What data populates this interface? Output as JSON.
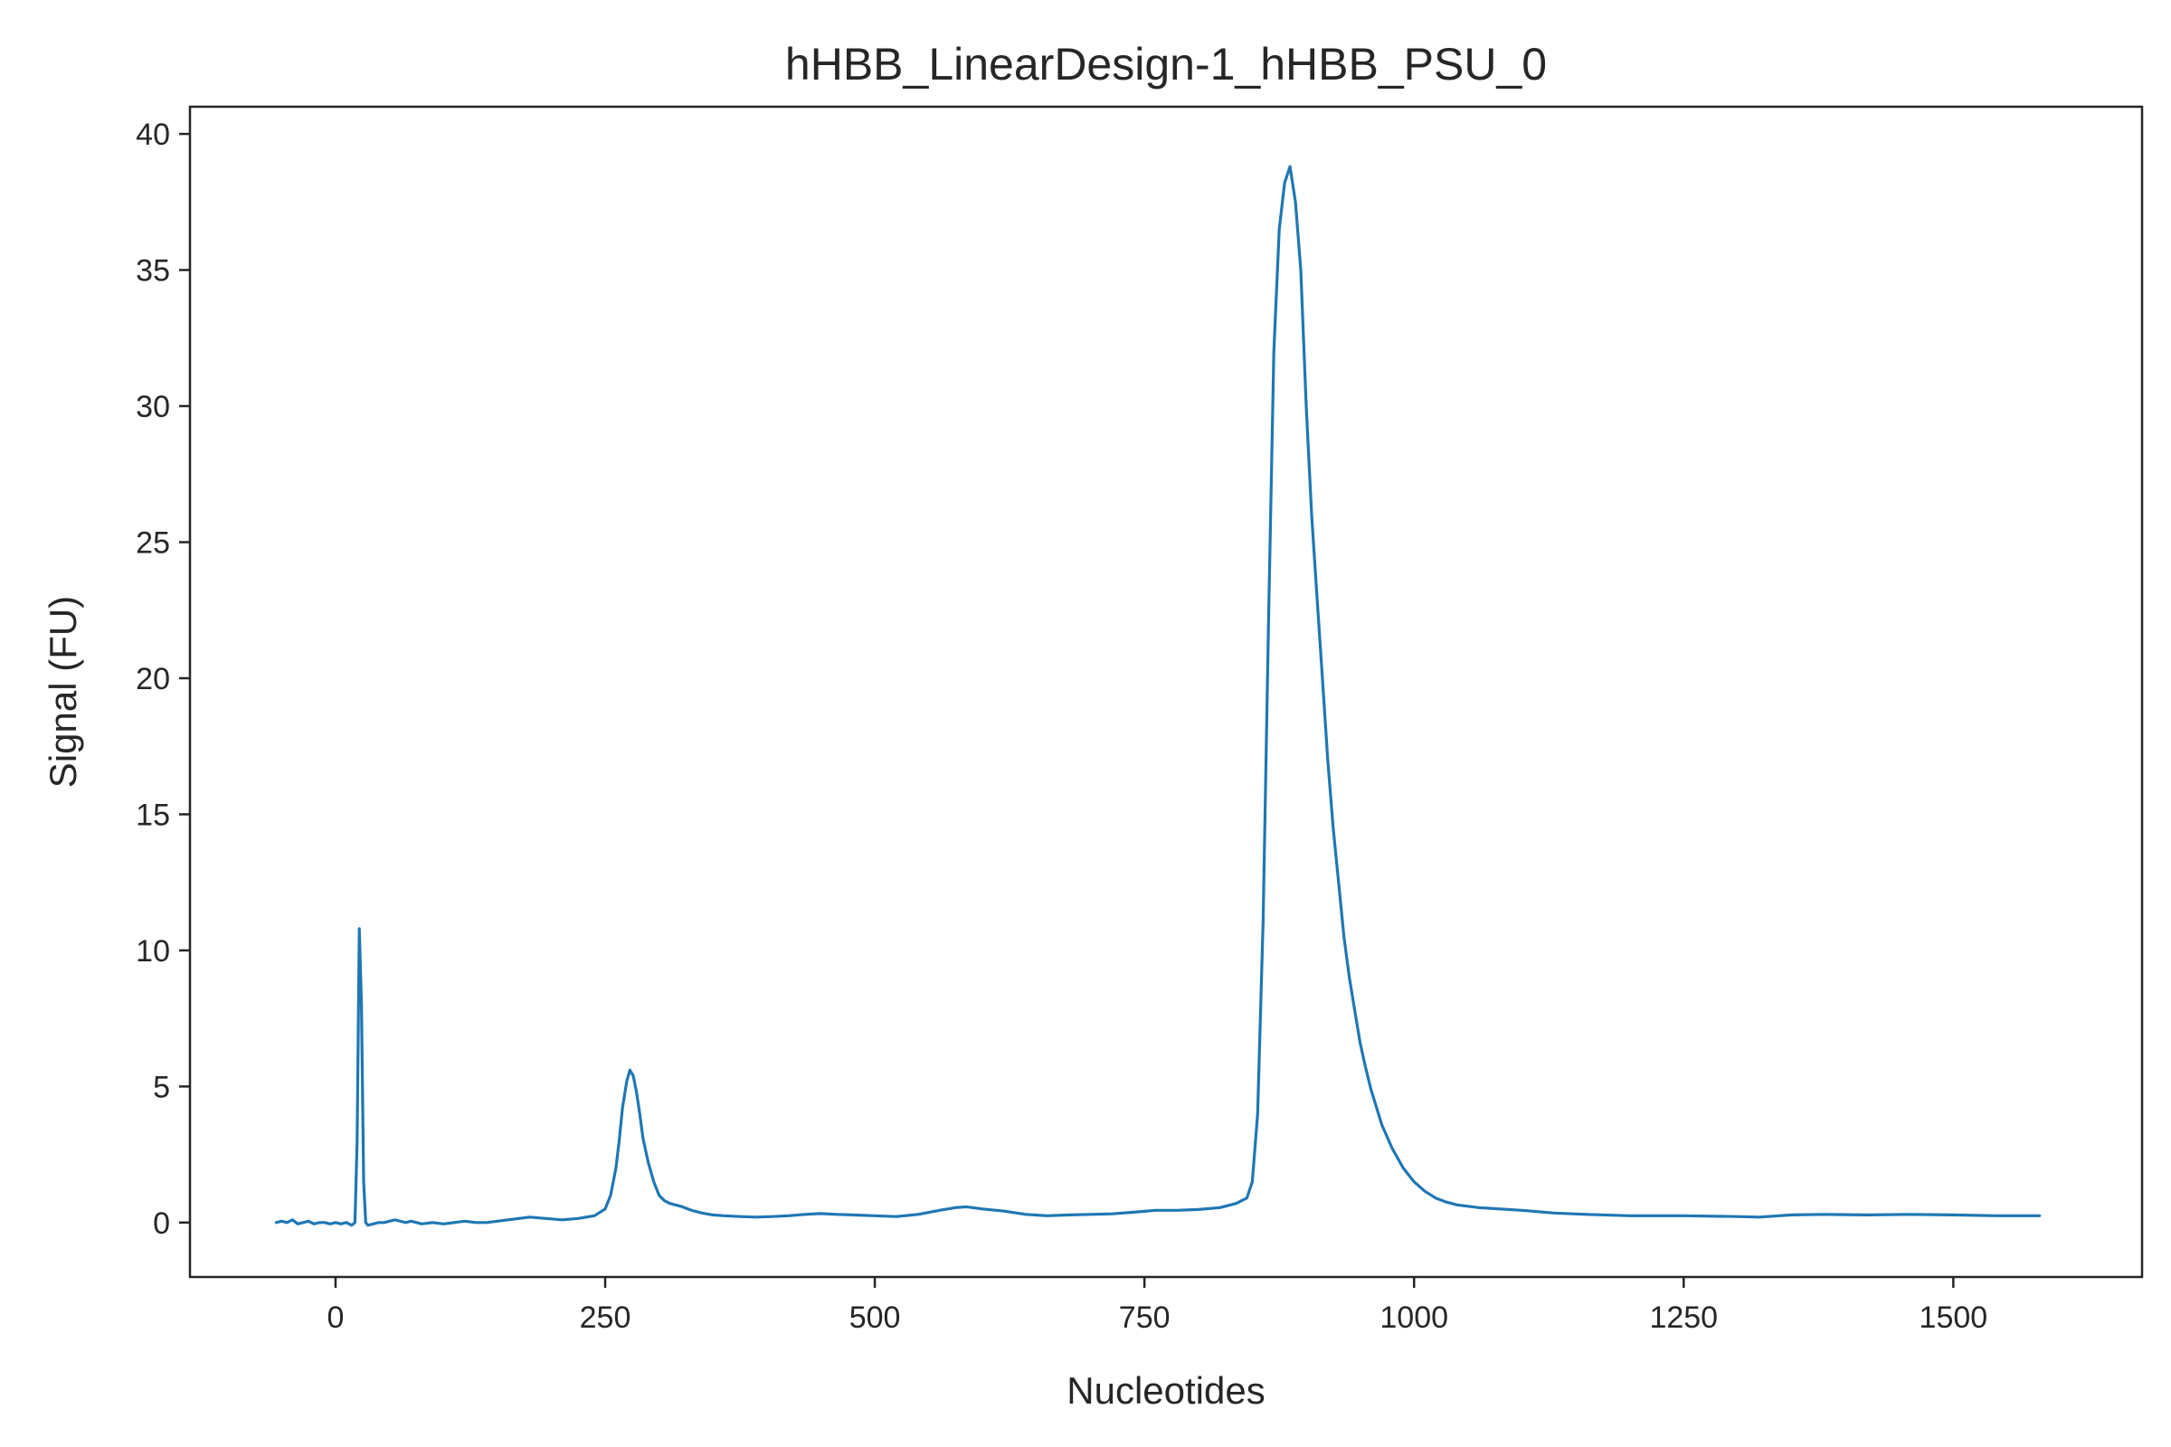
{
  "chart_data": {
    "type": "line",
    "title": "hHBB_LinearDesign-1_hHBB_PSU_0",
    "xlabel": "Nucleotides",
    "ylabel": "Signal (FU)",
    "xlim": [
      -135,
      1675
    ],
    "ylim": [
      -2,
      41
    ],
    "xticks": [
      0,
      250,
      500,
      750,
      1000,
      1250,
      1500
    ],
    "yticks": [
      0,
      5,
      10,
      15,
      20,
      25,
      30,
      35,
      40
    ],
    "grid": false,
    "legend": "none",
    "line_color": "#1f77b4",
    "series": [
      {
        "x": [
          -55,
          -50,
          -45,
          -40,
          -35,
          -30,
          -25,
          -20,
          -15,
          -10,
          -5,
          0,
          5,
          10,
          15,
          18,
          20,
          22,
          24,
          26,
          28,
          30,
          35,
          40,
          45,
          50,
          55,
          60,
          65,
          70,
          75,
          80,
          90,
          100,
          110,
          120,
          130,
          140,
          150,
          160,
          170,
          180,
          195,
          210,
          225,
          240,
          250,
          255,
          260,
          263,
          266,
          270,
          273,
          276,
          279,
          282,
          285,
          290,
          295,
          300,
          305,
          310,
          315,
          320,
          330,
          340,
          350,
          360,
          375,
          390,
          405,
          420,
          435,
          450,
          465,
          480,
          500,
          520,
          540,
          560,
          575,
          585,
          600,
          620,
          640,
          660,
          680,
          700,
          720,
          740,
          760,
          780,
          800,
          820,
          835,
          845,
          850,
          855,
          860,
          865,
          870,
          875,
          880,
          885,
          890,
          895,
          900,
          905,
          910,
          915,
          920,
          925,
          930,
          935,
          940,
          945,
          950,
          955,
          960,
          970,
          980,
          990,
          1000,
          1010,
          1020,
          1030,
          1040,
          1060,
          1080,
          1100,
          1130,
          1160,
          1200,
          1250,
          1300,
          1320,
          1350,
          1380,
          1420,
          1460,
          1500,
          1540,
          1580
        ],
        "values": [
          0.0,
          0.05,
          0.0,
          0.1,
          -0.05,
          0.0,
          0.05,
          -0.05,
          0.0,
          0.0,
          -0.05,
          0.0,
          -0.05,
          0.0,
          -0.1,
          0.0,
          3.0,
          10.8,
          8.0,
          1.5,
          0.0,
          -0.1,
          -0.05,
          0.0,
          0.0,
          0.05,
          0.1,
          0.05,
          0.0,
          0.05,
          0.0,
          -0.05,
          0.0,
          -0.05,
          0.0,
          0.05,
          0.0,
          0.0,
          0.05,
          0.1,
          0.15,
          0.2,
          0.15,
          0.1,
          0.15,
          0.25,
          0.5,
          1.0,
          2.0,
          3.0,
          4.2,
          5.2,
          5.6,
          5.4,
          4.8,
          4.0,
          3.1,
          2.2,
          1.5,
          1.0,
          0.8,
          0.7,
          0.65,
          0.6,
          0.45,
          0.35,
          0.28,
          0.25,
          0.22,
          0.2,
          0.22,
          0.25,
          0.3,
          0.33,
          0.3,
          0.28,
          0.25,
          0.22,
          0.3,
          0.45,
          0.55,
          0.58,
          0.5,
          0.42,
          0.3,
          0.25,
          0.28,
          0.3,
          0.32,
          0.38,
          0.45,
          0.45,
          0.48,
          0.55,
          0.7,
          0.9,
          1.5,
          4.0,
          11.0,
          22.0,
          32.0,
          36.5,
          38.2,
          38.8,
          37.5,
          35.0,
          30.0,
          26.0,
          23.0,
          20.0,
          17.0,
          14.5,
          12.5,
          10.5,
          9.0,
          7.8,
          6.6,
          5.7,
          4.9,
          3.6,
          2.7,
          2.0,
          1.5,
          1.15,
          0.9,
          0.75,
          0.65,
          0.55,
          0.5,
          0.45,
          0.35,
          0.3,
          0.25,
          0.25,
          0.22,
          0.2,
          0.28,
          0.3,
          0.28,
          0.3,
          0.28,
          0.25,
          0.25
        ]
      }
    ]
  }
}
